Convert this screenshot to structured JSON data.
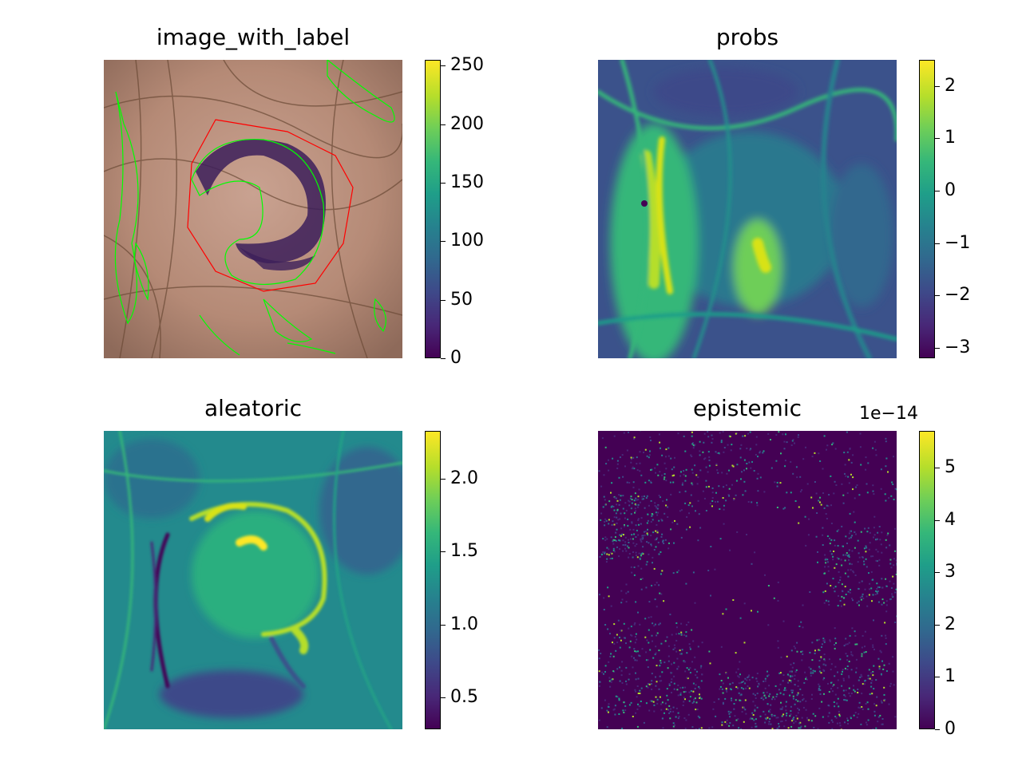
{
  "chart_data": [
    {
      "type": "heatmap",
      "title": "image_with_label",
      "colormap": "viridis",
      "colorbar": {
        "min": 0,
        "max": 255,
        "ticks": [
          {
            "value": 0,
            "label": "0"
          },
          {
            "value": 50,
            "label": "50"
          },
          {
            "value": 100,
            "label": "100"
          },
          {
            "value": 150,
            "label": "150"
          },
          {
            "value": 200,
            "label": "200"
          },
          {
            "value": 250,
            "label": "250"
          }
        ]
      },
      "overlay": {
        "prediction_color": "#ff0000",
        "label_color": "#00ff00"
      }
    },
    {
      "type": "heatmap",
      "title": "probs",
      "colormap": "viridis",
      "colorbar": {
        "min": -3.2,
        "max": 2.5,
        "ticks": [
          {
            "value": -3,
            "label": "−3"
          },
          {
            "value": -2,
            "label": "−2"
          },
          {
            "value": -1,
            "label": "−1"
          },
          {
            "value": 0,
            "label": "0"
          },
          {
            "value": 1,
            "label": "1"
          },
          {
            "value": 2,
            "label": "2"
          }
        ]
      }
    },
    {
      "type": "heatmap",
      "title": "aleatoric",
      "colormap": "viridis",
      "colorbar": {
        "min": 0.28,
        "max": 2.33,
        "ticks": [
          {
            "value": 0.5,
            "label": "0.5"
          },
          {
            "value": 1.0,
            "label": "1.0"
          },
          {
            "value": 1.5,
            "label": "1.5"
          },
          {
            "value": 2.0,
            "label": "2.0"
          }
        ]
      }
    },
    {
      "type": "heatmap",
      "title": "epistemic",
      "colormap": "viridis",
      "colorbar": {
        "min": 0,
        "max": 5.7,
        "offset_label": "1e−14",
        "ticks": [
          {
            "value": 0,
            "label": "0"
          },
          {
            "value": 1,
            "label": "1"
          },
          {
            "value": 2,
            "label": "2"
          },
          {
            "value": 3,
            "label": "3"
          },
          {
            "value": 4,
            "label": "4"
          },
          {
            "value": 5,
            "label": "5"
          }
        ]
      }
    }
  ]
}
